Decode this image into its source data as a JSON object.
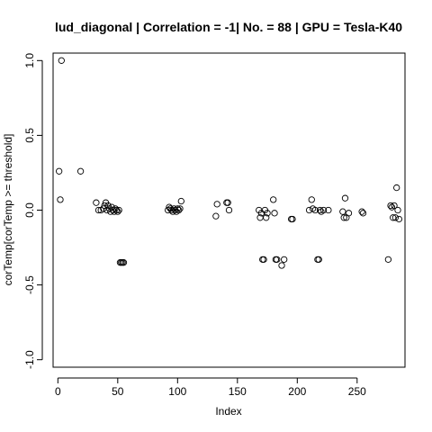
{
  "chart_data": {
    "type": "scatter",
    "title": "lud_diagonal | Correlation = -1| No. = 88 | GPU = Tesla-K40",
    "xlabel": "Index",
    "ylabel": "corTemp[corTemp >= threshold]",
    "xlim": [
      -4,
      290
    ],
    "ylim": [
      -1.05,
      1.05
    ],
    "xticks": [
      0,
      50,
      100,
      150,
      200,
      250
    ],
    "yticks": [
      -1.0,
      -0.5,
      0.0,
      0.5,
      1.0
    ],
    "xtick_labels": [
      "0",
      "50",
      "100",
      "150",
      "200",
      "250"
    ],
    "ytick_labels": [
      "-1.0",
      "-0.5",
      "0.0",
      "0.5",
      "1.0"
    ],
    "grid": false,
    "points": [
      {
        "x": 1,
        "y": 0.26
      },
      {
        "x": 2,
        "y": 0.07
      },
      {
        "x": 3,
        "y": 1.0
      },
      {
        "x": 19,
        "y": 0.26
      },
      {
        "x": 32,
        "y": 0.05
      },
      {
        "x": 34,
        "y": 0.0
      },
      {
        "x": 36,
        "y": 0.0
      },
      {
        "x": 38,
        "y": 0.01
      },
      {
        "x": 39,
        "y": 0.03
      },
      {
        "x": 40,
        "y": 0.05
      },
      {
        "x": 41,
        "y": 0.0
      },
      {
        "x": 42,
        "y": 0.03
      },
      {
        "x": 43,
        "y": 0.01
      },
      {
        "x": 44,
        "y": -0.01
      },
      {
        "x": 45,
        "y": 0.02
      },
      {
        "x": 46,
        "y": 0.0
      },
      {
        "x": 47,
        "y": -0.01
      },
      {
        "x": 48,
        "y": 0.01
      },
      {
        "x": 49,
        "y": 0.0
      },
      {
        "x": 50,
        "y": -0.01
      },
      {
        "x": 51,
        "y": 0.0
      },
      {
        "x": 52,
        "y": -0.35
      },
      {
        "x": 53,
        "y": -0.35
      },
      {
        "x": 54,
        "y": -0.35
      },
      {
        "x": 55,
        "y": -0.35
      },
      {
        "x": 92,
        "y": 0.0
      },
      {
        "x": 93,
        "y": 0.02
      },
      {
        "x": 94,
        "y": 0.01
      },
      {
        "x": 95,
        "y": 0.0
      },
      {
        "x": 96,
        "y": -0.01
      },
      {
        "x": 97,
        "y": 0.01
      },
      {
        "x": 98,
        "y": 0.0
      },
      {
        "x": 99,
        "y": -0.01
      },
      {
        "x": 100,
        "y": 0.01
      },
      {
        "x": 101,
        "y": 0.0
      },
      {
        "x": 102,
        "y": 0.01
      },
      {
        "x": 103,
        "y": 0.06
      },
      {
        "x": 132,
        "y": -0.04
      },
      {
        "x": 133,
        "y": 0.04
      },
      {
        "x": 141,
        "y": 0.05
      },
      {
        "x": 142,
        "y": 0.05
      },
      {
        "x": 143,
        "y": 0.0
      },
      {
        "x": 168,
        "y": 0.0
      },
      {
        "x": 169,
        "y": -0.05
      },
      {
        "x": 170,
        "y": -0.02
      },
      {
        "x": 171,
        "y": -0.33
      },
      {
        "x": 172,
        "y": -0.33
      },
      {
        "x": 173,
        "y": 0.0
      },
      {
        "x": 174,
        "y": -0.05
      },
      {
        "x": 175,
        "y": -0.02
      },
      {
        "x": 180,
        "y": 0.07
      },
      {
        "x": 181,
        "y": -0.02
      },
      {
        "x": 182,
        "y": -0.33
      },
      {
        "x": 183,
        "y": -0.33
      },
      {
        "x": 187,
        "y": -0.37
      },
      {
        "x": 189,
        "y": -0.33
      },
      {
        "x": 195,
        "y": -0.06
      },
      {
        "x": 196,
        "y": -0.06
      },
      {
        "x": 210,
        "y": 0.0
      },
      {
        "x": 212,
        "y": 0.07
      },
      {
        "x": 213,
        "y": 0.01
      },
      {
        "x": 215,
        "y": 0.0
      },
      {
        "x": 217,
        "y": -0.33
      },
      {
        "x": 218,
        "y": -0.33
      },
      {
        "x": 219,
        "y": 0.0
      },
      {
        "x": 220,
        "y": -0.01
      },
      {
        "x": 222,
        "y": 0.0
      },
      {
        "x": 226,
        "y": 0.0
      },
      {
        "x": 238,
        "y": -0.01
      },
      {
        "x": 239,
        "y": -0.05
      },
      {
        "x": 240,
        "y": 0.08
      },
      {
        "x": 241,
        "y": -0.05
      },
      {
        "x": 243,
        "y": -0.02
      },
      {
        "x": 254,
        "y": -0.01
      },
      {
        "x": 255,
        "y": -0.02
      },
      {
        "x": 276,
        "y": -0.33
      },
      {
        "x": 278,
        "y": 0.03
      },
      {
        "x": 279,
        "y": 0.02
      },
      {
        "x": 280,
        "y": -0.05
      },
      {
        "x": 281,
        "y": 0.03
      },
      {
        "x": 282,
        "y": -0.05
      },
      {
        "x": 283,
        "y": 0.15
      },
      {
        "x": 284,
        "y": 0.0
      },
      {
        "x": 285,
        "y": -0.06
      }
    ]
  }
}
